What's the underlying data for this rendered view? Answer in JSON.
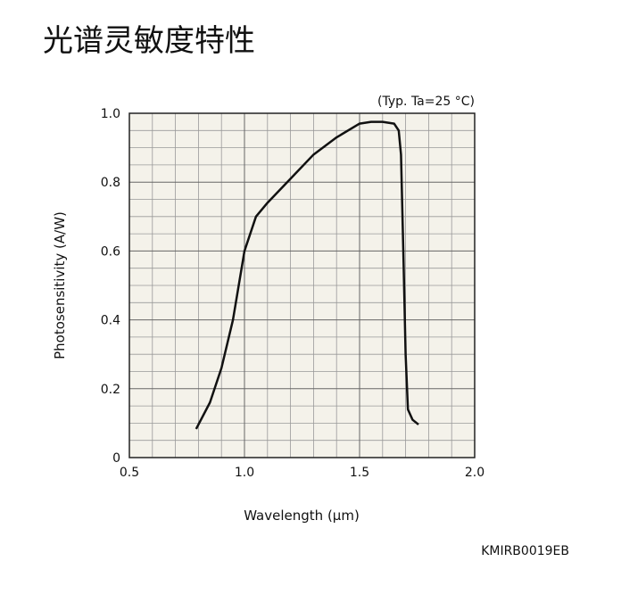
{
  "chart_data": {
    "type": "line",
    "title": "光谱灵敏度特性",
    "annotation": "(Typ. Ta=25 °C)",
    "footer": "KMIRB0019EB",
    "xlabel": "Wavelength (μm)",
    "ylabel": "Photosensitivity (A/W)",
    "xlim": [
      0.5,
      2.0
    ],
    "ylim": [
      0,
      1.0
    ],
    "xticks": [
      0.5,
      {
        "value": 1.0,
        "label": "1.0"
      },
      1.5,
      {
        "value": 2.0,
        "label": "2.0"
      }
    ],
    "yticks": [
      0,
      0.2,
      0.4,
      0.6,
      0.8,
      {
        "value": 1.0,
        "label": "1.0"
      }
    ],
    "x_minor_grid": [
      0.6,
      0.7,
      0.8,
      0.9,
      1.1,
      1.2,
      1.3,
      1.4,
      1.6,
      1.7,
      1.8,
      1.9
    ],
    "y_minor_grid": [
      0.05,
      0.1,
      0.15,
      0.25,
      0.3,
      0.35,
      0.45,
      0.5,
      0.55,
      0.65,
      0.7,
      0.75,
      0.85,
      0.9,
      0.95
    ],
    "grid": true,
    "background": "#f4f2ea",
    "series": [
      {
        "name": "Photosensitivity",
        "color": "#111111",
        "x": [
          0.79,
          0.85,
          0.9,
          0.95,
          1.0,
          1.05,
          1.1,
          1.2,
          1.3,
          1.4,
          1.5,
          1.55,
          1.6,
          1.65,
          1.67,
          1.68,
          1.69,
          1.7,
          1.71,
          1.73,
          1.756
        ],
        "values": [
          0.083,
          0.16,
          0.26,
          0.4,
          0.6,
          0.7,
          0.74,
          0.81,
          0.88,
          0.93,
          0.97,
          0.975,
          0.975,
          0.97,
          0.95,
          0.88,
          0.6,
          0.3,
          0.14,
          0.11,
          0.096
        ]
      }
    ]
  }
}
